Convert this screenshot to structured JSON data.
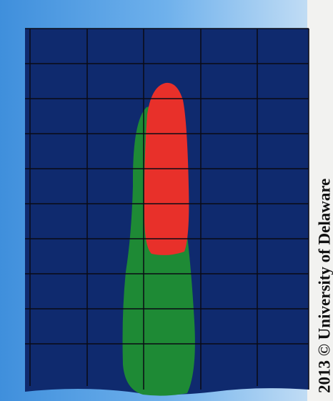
{
  "watermark": "2013 © University of Delaware"
}
